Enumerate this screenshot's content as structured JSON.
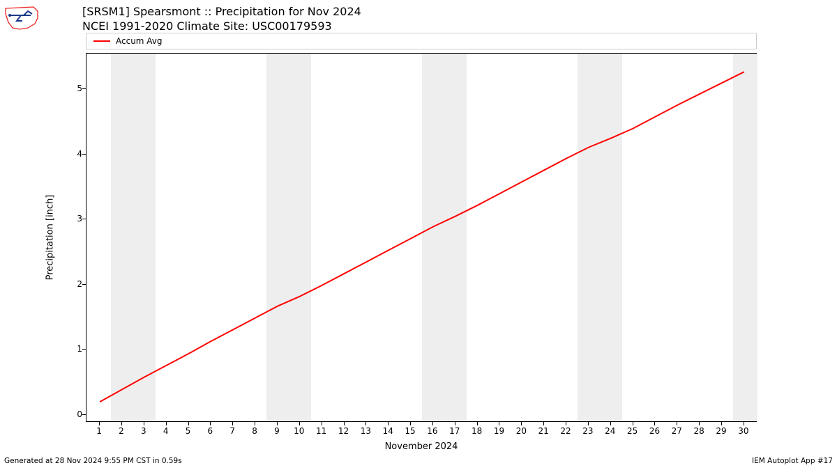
{
  "title": {
    "line1": "[SRSM1] Spearsmont :: Precipitation for Nov 2024",
    "line2": "NCEI 1991-2020 Climate Site: USC00179593"
  },
  "legend": {
    "label": "Accum Avg",
    "line_color": "#ff0000"
  },
  "chart": {
    "type": "line",
    "background_color": "#ffffff",
    "weekend_band_color": "#eeeeee",
    "line_color": "#ff0000",
    "line_width": 2,
    "ylabel": "Precipitation [inch]",
    "xlabel": "November 2024",
    "xlim": [
      0.4,
      30.6
    ],
    "ylim": [
      -0.12,
      5.55
    ],
    "yticks": [
      0,
      1,
      2,
      3,
      4,
      5
    ],
    "xticks": [
      1,
      2,
      3,
      4,
      5,
      6,
      7,
      8,
      9,
      10,
      11,
      12,
      13,
      14,
      15,
      16,
      17,
      18,
      19,
      20,
      21,
      22,
      23,
      24,
      25,
      26,
      27,
      28,
      29,
      30
    ],
    "weekend_bands": [
      [
        1.5,
        3.5
      ],
      [
        8.5,
        10.5
      ],
      [
        15.5,
        17.5
      ],
      [
        22.5,
        24.5
      ],
      [
        29.5,
        30.6
      ]
    ],
    "series": {
      "x": [
        1,
        2,
        3,
        4,
        5,
        6,
        7,
        8,
        9,
        10,
        11,
        12,
        13,
        14,
        15,
        16,
        17,
        18,
        19,
        20,
        21,
        22,
        23,
        24,
        25,
        26,
        27,
        28,
        29,
        30
      ],
      "y": [
        0.2,
        0.39,
        0.58,
        0.76,
        0.94,
        1.13,
        1.31,
        1.49,
        1.67,
        1.82,
        1.99,
        2.17,
        2.35,
        2.53,
        2.71,
        2.89,
        3.05,
        3.22,
        3.4,
        3.58,
        3.76,
        3.94,
        4.11,
        4.25,
        4.4,
        4.58,
        4.76,
        4.93,
        5.1,
        5.27
      ]
    },
    "label_fontsize": 13,
    "tick_fontsize": 12
  },
  "footer": {
    "left": "Generated at 28 Nov 2024 9:55 PM CST in 0.59s",
    "right": "IEM Autoplot App #17"
  },
  "logo": {
    "outline_color": "#ee2222",
    "accent_color": "#1a3a8a"
  }
}
